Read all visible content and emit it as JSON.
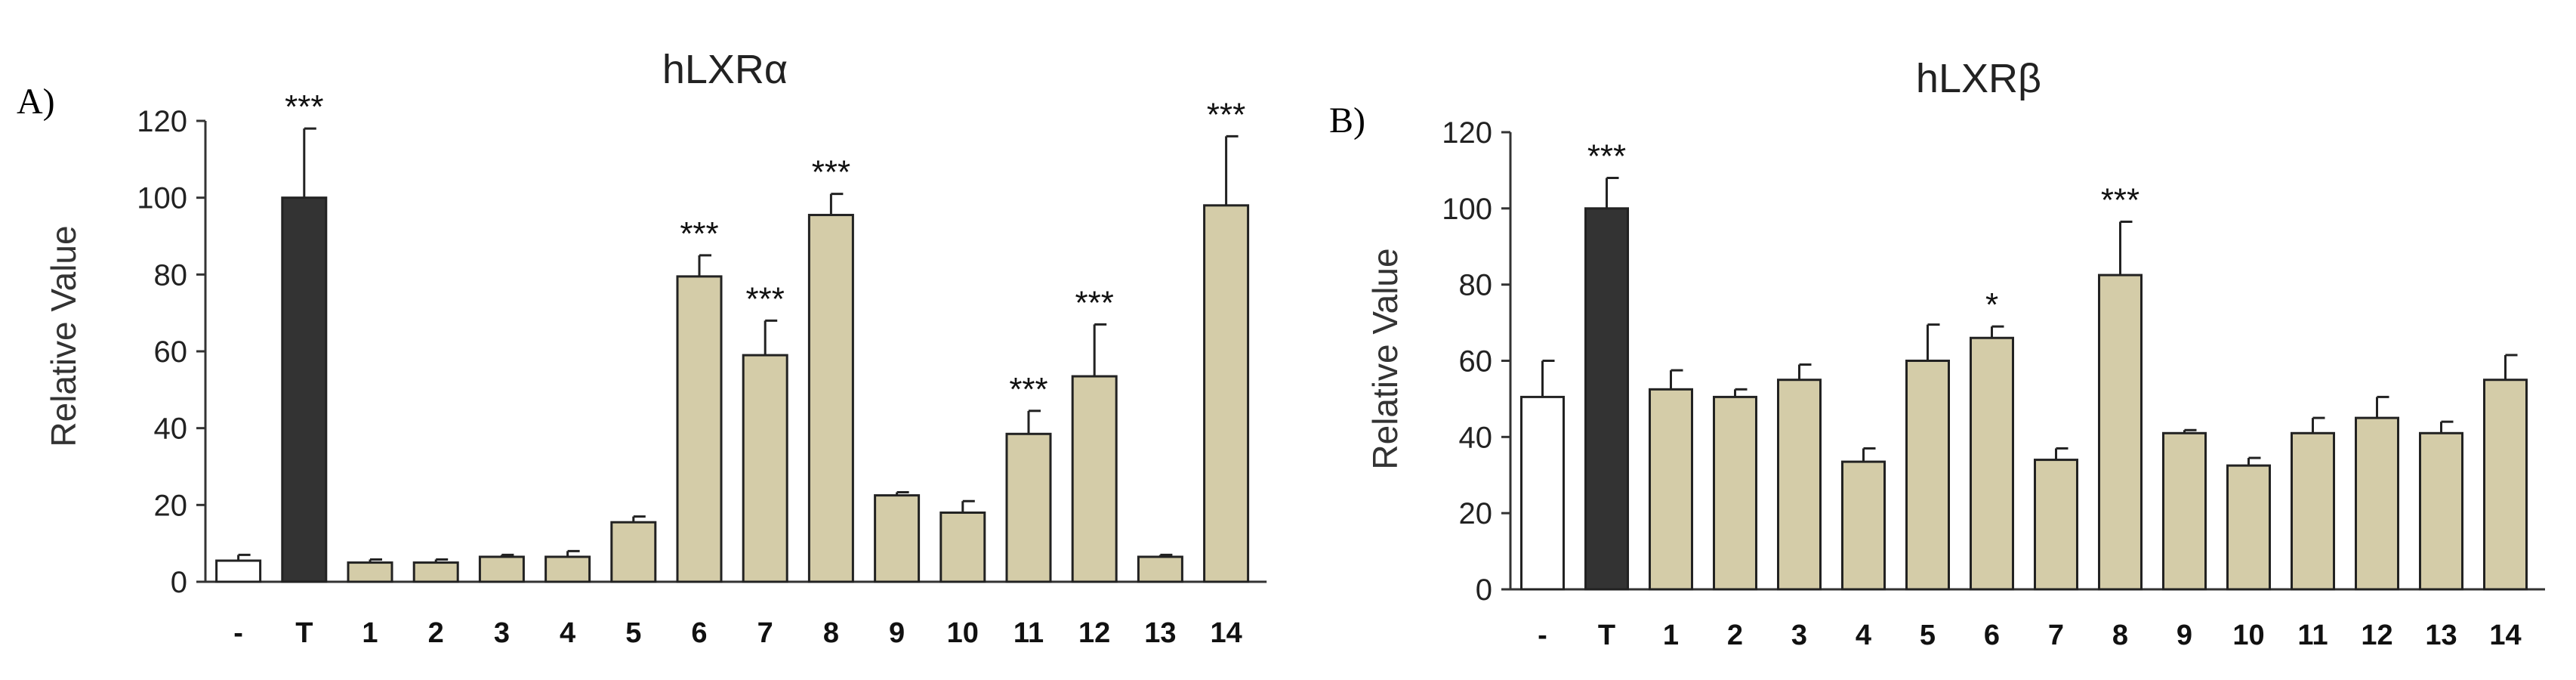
{
  "chart_data": [
    {
      "type": "bar",
      "panel": "A)",
      "title": "hLXRα",
      "xlabel": "",
      "ylabel": "Relative Value",
      "ylim": [
        0,
        120
      ],
      "yticks": [
        0,
        20,
        40,
        60,
        80,
        100,
        120
      ],
      "grid": false,
      "categories": [
        "-",
        "T",
        "1",
        "2",
        "3",
        "4",
        "5",
        "6",
        "7",
        "8",
        "9",
        "10",
        "11",
        "12",
        "13",
        "14"
      ],
      "values": [
        5.5,
        100,
        5,
        5,
        6.5,
        6.5,
        15.5,
        79.5,
        59,
        95.5,
        22.5,
        18,
        38.5,
        53.5,
        6.5,
        98
      ],
      "errors": [
        1.5,
        18,
        0.8,
        0.8,
        0.5,
        1.5,
        1.5,
        5.5,
        9,
        5.5,
        0.8,
        3,
        6,
        13.5,
        0.5,
        18
      ],
      "significance": [
        "",
        "***",
        "",
        "",
        "",
        "",
        "",
        "***",
        "***",
        "***",
        "",
        "",
        "***",
        "***",
        "",
        "***"
      ],
      "bar_colors": [
        "#ffffff",
        "#333333",
        "#d4cca8",
        "#d4cca8",
        "#d4cca8",
        "#d4cca8",
        "#d4cca8",
        "#d4cca8",
        "#d4cca8",
        "#d4cca8",
        "#d4cca8",
        "#d4cca8",
        "#d4cca8",
        "#d4cca8",
        "#d4cca8",
        "#d4cca8"
      ]
    },
    {
      "type": "bar",
      "panel": "B)",
      "title": "hLXRβ",
      "xlabel": "",
      "ylabel": "Relative Value",
      "ylim": [
        0,
        120
      ],
      "yticks": [
        0,
        20,
        40,
        60,
        80,
        100,
        120
      ],
      "grid": false,
      "categories": [
        "-",
        "T",
        "1",
        "2",
        "3",
        "4",
        "5",
        "6",
        "7",
        "8",
        "9",
        "10",
        "11",
        "12",
        "13",
        "14"
      ],
      "values": [
        50.5,
        100,
        52.5,
        50.5,
        55,
        33.5,
        60,
        66,
        34,
        82.5,
        41,
        32.5,
        41,
        45,
        41,
        55
      ],
      "errors": [
        9.5,
        8,
        5,
        2,
        4,
        3.5,
        9.5,
        3,
        3,
        14,
        0.8,
        2,
        4,
        5.5,
        3,
        6.5
      ],
      "significance": [
        "",
        "***",
        "",
        "",
        "",
        "",
        "",
        "*",
        "",
        "***",
        "",
        "",
        "",
        "",
        "",
        ""
      ],
      "bar_colors": [
        "#ffffff",
        "#333333",
        "#d4cca8",
        "#d4cca8",
        "#d4cca8",
        "#d4cca8",
        "#d4cca8",
        "#d4cca8",
        "#d4cca8",
        "#d4cca8",
        "#d4cca8",
        "#d4cca8",
        "#d4cca8",
        "#d4cca8",
        "#d4cca8",
        "#d4cca8"
      ]
    }
  ]
}
